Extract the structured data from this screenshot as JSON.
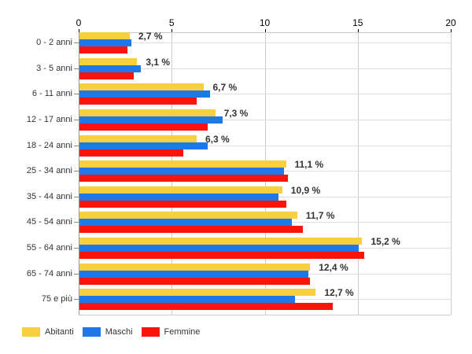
{
  "chart_data": {
    "type": "bar",
    "orientation": "horizontal",
    "title": "",
    "xlabel": "",
    "ylabel": "",
    "xlim": [
      0,
      20
    ],
    "x_ticks": [
      "0",
      "5",
      "10",
      "15",
      "20"
    ],
    "x_tick_values": [
      0,
      5,
      10,
      15,
      20
    ],
    "grid": true,
    "legend_position": "bottom",
    "categories": [
      "0 - 2 anni",
      "3 - 5 anni",
      "6 - 11 anni",
      "12 - 17 anni",
      "18 - 24 anni",
      "25 - 34 anni",
      "35 - 44 anni",
      "45 - 54 anni",
      "55 - 64 anni",
      "65 - 74 anni",
      "75 e più"
    ],
    "series": [
      {
        "name": "Abitanti",
        "color": "#F8D03F",
        "values": [
          2.7,
          3.1,
          6.7,
          7.3,
          6.3,
          11.1,
          10.9,
          11.7,
          15.2,
          12.4,
          12.7
        ]
      },
      {
        "name": "Maschi",
        "color": "#1E78E8",
        "values": [
          2.8,
          3.3,
          7.0,
          7.7,
          6.9,
          11.0,
          10.7,
          11.4,
          15.0,
          12.3,
          11.6
        ]
      },
      {
        "name": "Femmine",
        "color": "#FA140C",
        "values": [
          2.6,
          2.9,
          6.3,
          6.9,
          5.6,
          11.2,
          11.1,
          12.0,
          15.3,
          12.4,
          13.6
        ]
      }
    ],
    "value_labels": [
      "2,7 %",
      "3,1 %",
      "6,7 %",
      "7,3 %",
      "6,3 %",
      "11,1 %",
      "10,9 %",
      "11,7 %",
      "15,2 %",
      "12,4 %",
      "12,7 %"
    ]
  },
  "colors": {
    "axis_line": "#999999",
    "gridline_vertical": "#cccccc",
    "gridline_horizontal": "#dddddd",
    "tick_mark": "#000000",
    "text": "#333333"
  }
}
